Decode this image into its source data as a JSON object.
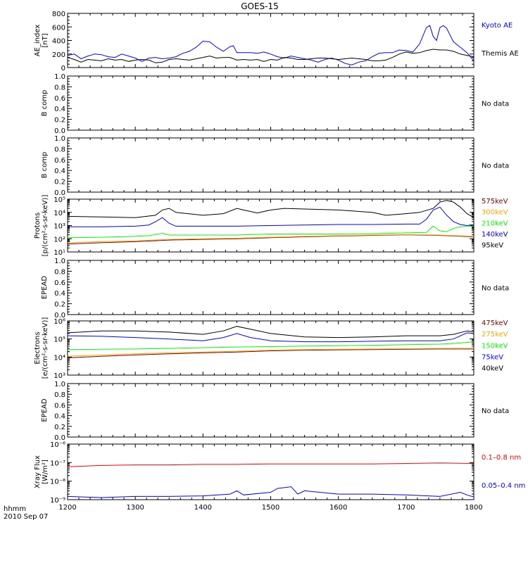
{
  "title": "GOES-15",
  "time_axis": {
    "label": "hhmm",
    "date": "2010 Sep 07",
    "ticks": [
      "1200",
      "1300",
      "1400",
      "1500",
      "1600",
      "1700",
      "1800"
    ]
  },
  "colors": {
    "black": "#000000",
    "blue": "#0000ff",
    "red": "#ff0000",
    "orange": "#ffa500",
    "green": "#00ff00",
    "dark_red": "#800000"
  },
  "chart_data": [
    {
      "type": "line",
      "ylabel": [
        "AE_index",
        "[nT]"
      ],
      "ylim": [
        0,
        800
      ],
      "yticks": [
        "0",
        "200",
        "400",
        "600",
        "800"
      ],
      "series": [
        {
          "name": "Kyoto AE",
          "color": "#0000ff",
          "x": [
            1200,
            1210,
            1220,
            1230,
            1240,
            1250,
            1260,
            1270,
            1280,
            1290,
            1300,
            1310,
            1320,
            1330,
            1340,
            1350,
            1360,
            1370,
            1380,
            1390,
            1400,
            1410,
            1420,
            1430,
            1440,
            1445,
            1450,
            1460,
            1470,
            1480,
            1490,
            1500,
            1510,
            1520,
            1530,
            1540,
            1550,
            1560,
            1570,
            1580,
            1590,
            1600,
            1610,
            1620,
            1630,
            1640,
            1650,
            1660,
            1670,
            1680,
            1690,
            1700,
            1710,
            1720,
            1730,
            1735,
            1740,
            1745,
            1750,
            1755,
            1760,
            1765,
            1770,
            1780,
            1790,
            1800
          ],
          "y": [
            180,
            200,
            130,
            170,
            200,
            190,
            160,
            150,
            200,
            170,
            140,
            90,
            140,
            150,
            130,
            140,
            160,
            210,
            240,
            300,
            390,
            380,
            300,
            240,
            310,
            320,
            220,
            220,
            220,
            210,
            230,
            200,
            160,
            140,
            170,
            150,
            130,
            110,
            80,
            120,
            140,
            110,
            60,
            40,
            80,
            100,
            160,
            210,
            220,
            220,
            260,
            250,
            230,
            350,
            590,
            620,
            460,
            400,
            590,
            620,
            580,
            480,
            380,
            300,
            220,
            100
          ]
        },
        {
          "name": "Themis AE",
          "color": "#000000",
          "x": [
            1200,
            1210,
            1220,
            1230,
            1240,
            1250,
            1260,
            1270,
            1280,
            1290,
            1300,
            1310,
            1320,
            1330,
            1340,
            1350,
            1360,
            1370,
            1380,
            1390,
            1400,
            1410,
            1420,
            1430,
            1440,
            1450,
            1460,
            1470,
            1480,
            1490,
            1500,
            1510,
            1520,
            1530,
            1540,
            1550,
            1560,
            1570,
            1580,
            1590,
            1600,
            1610,
            1620,
            1630,
            1640,
            1650,
            1660,
            1670,
            1680,
            1690,
            1700,
            1710,
            1720,
            1730,
            1740,
            1750,
            1760,
            1770,
            1780,
            1790,
            1800
          ],
          "y": [
            150,
            120,
            80,
            120,
            110,
            100,
            130,
            110,
            120,
            90,
            110,
            120,
            110,
            70,
            80,
            120,
            130,
            120,
            110,
            130,
            150,
            170,
            140,
            150,
            150,
            110,
            120,
            110,
            120,
            90,
            120,
            110,
            150,
            140,
            120,
            120,
            130,
            140,
            140,
            130,
            120,
            130,
            140,
            130,
            120,
            100,
            100,
            110,
            150,
            200,
            230,
            210,
            220,
            250,
            270,
            260,
            260,
            240,
            200,
            180,
            160
          ]
        }
      ]
    },
    {
      "type": "line",
      "ylabel": [
        "B comp"
      ],
      "ylim": [
        0,
        1
      ],
      "yticks": [
        "0.0",
        "0.2",
        "0.4",
        "0.6",
        "0.8",
        "1.0"
      ],
      "note": "No data",
      "series": []
    },
    {
      "type": "line",
      "ylabel": [
        "B comp"
      ],
      "ylim": [
        0,
        1
      ],
      "yticks": [
        "0.0",
        "0.2",
        "0.4",
        "0.6",
        "0.8",
        "1.0"
      ],
      "note": "No data",
      "series": []
    },
    {
      "type": "line",
      "log": true,
      "ylabel": [
        "Protons",
        "[p/(cm²-s-sr-keV)]"
      ],
      "ylim": [
        1,
        5
      ],
      "ytick_exponents": [
        1,
        2,
        3,
        4,
        5
      ],
      "series": [
        {
          "name": "575keV",
          "color": "#800000",
          "x": [
            1200,
            1250,
            1300,
            1350,
            1400,
            1450,
            1500,
            1550,
            1600,
            1650,
            1700,
            1750,
            1800
          ],
          "y": [
            40,
            50,
            60,
            80,
            90,
            100,
            120,
            140,
            160,
            180,
            200,
            180,
            140
          ]
        },
        {
          "name": "300keV",
          "color": "#ffa500",
          "x": [
            1200,
            1250,
            1300,
            1350,
            1400,
            1450,
            1500,
            1550,
            1600,
            1650,
            1700,
            1750,
            1800
          ],
          "y": [
            50,
            60,
            70,
            90,
            100,
            110,
            130,
            150,
            170,
            190,
            210,
            190,
            150
          ]
        },
        {
          "name": "210keV",
          "color": "#00ff00",
          "x": [
            1200,
            1250,
            1300,
            1320,
            1340,
            1350,
            1400,
            1450,
            1500,
            1550,
            1600,
            1650,
            1700,
            1730,
            1740,
            1750,
            1760,
            1770,
            1780,
            1790,
            1800
          ],
          "y": [
            120,
            130,
            150,
            170,
            260,
            190,
            190,
            190,
            230,
            230,
            230,
            240,
            280,
            300,
            900,
            400,
            350,
            600,
            800,
            900,
            900
          ]
        },
        {
          "name": "140keV",
          "color": "#0000ff",
          "x": [
            1200,
            1250,
            1300,
            1320,
            1330,
            1340,
            1350,
            1360,
            1400,
            1450,
            1500,
            1550,
            1600,
            1650,
            1700,
            1720,
            1730,
            1740,
            1750,
            1760,
            1770,
            1780,
            1790,
            1800
          ],
          "y": [
            800,
            800,
            900,
            1100,
            2000,
            4000,
            1500,
            900,
            900,
            900,
            1000,
            1100,
            1200,
            1200,
            1300,
            1300,
            3000,
            15000,
            25000,
            6000,
            2000,
            1200,
            1000,
            1200
          ]
        },
        {
          "name": "95keV",
          "color": "#000000",
          "x": [
            1200,
            1250,
            1300,
            1330,
            1340,
            1350,
            1360,
            1400,
            1430,
            1450,
            1460,
            1480,
            1500,
            1520,
            1550,
            1600,
            1650,
            1670,
            1700,
            1720,
            1740,
            1750,
            1760,
            1770,
            1780,
            1790,
            1800
          ],
          "y": [
            5000,
            4500,
            4000,
            6000,
            15000,
            20000,
            10000,
            6000,
            8000,
            20000,
            15000,
            9000,
            15000,
            20000,
            18000,
            15000,
            10000,
            6000,
            8000,
            10000,
            20000,
            60000,
            80000,
            60000,
            25000,
            8000,
            4000
          ]
        }
      ]
    },
    {
      "type": "line",
      "ylabel": [
        "EPEAD"
      ],
      "ylim": [
        0,
        1
      ],
      "yticks": [
        "0.0",
        "0.2",
        "0.4",
        "0.6",
        "0.8",
        "1.0"
      ],
      "note": "No data",
      "series": []
    },
    {
      "type": "line",
      "log": true,
      "ylabel": [
        "Electrons",
        "[e/(cm²-s-sr-keV)]"
      ],
      "ylim": [
        3,
        6
      ],
      "ytick_exponents": [
        3,
        4,
        5,
        6
      ],
      "series": [
        {
          "name": "475keV",
          "color": "#800000",
          "x": [
            1200,
            1250,
            1300,
            1350,
            1400,
            1450,
            1500,
            1550,
            1600,
            1650,
            1700,
            1750,
            1800
          ],
          "y": [
            9000,
            11000,
            13000,
            15000,
            17000,
            19000,
            22000,
            24000,
            25000,
            26000,
            27000,
            28000,
            28000
          ]
        },
        {
          "name": "275keV",
          "color": "#ffa500",
          "x": [
            1200,
            1250,
            1300,
            1350,
            1400,
            1450,
            1500,
            1550,
            1600,
            1650,
            1700,
            1750,
            1800
          ],
          "y": [
            11000,
            13000,
            15000,
            17000,
            19000,
            21000,
            24000,
            26000,
            27000,
            28000,
            29000,
            30000,
            30000
          ]
        },
        {
          "name": "150keV",
          "color": "#00ff00",
          "x": [
            1200,
            1250,
            1300,
            1350,
            1400,
            1450,
            1500,
            1550,
            1600,
            1650,
            1700,
            1750,
            1780,
            1800
          ],
          "y": [
            26000,
            27000,
            28000,
            30000,
            33000,
            36000,
            38000,
            40000,
            42000,
            45000,
            48000,
            52000,
            60000,
            70000
          ]
        },
        {
          "name": "75keV",
          "color": "#0000ff",
          "x": [
            1200,
            1250,
            1300,
            1350,
            1400,
            1430,
            1450,
            1470,
            1500,
            1550,
            1600,
            1650,
            1700,
            1750,
            1770,
            1790,
            1800
          ],
          "y": [
            150000,
            140000,
            120000,
            100000,
            80000,
            120000,
            200000,
            120000,
            80000,
            70000,
            70000,
            75000,
            80000,
            80000,
            100000,
            220000,
            200000
          ]
        },
        {
          "name": "40keV",
          "color": "#000000",
          "x": [
            1200,
            1250,
            1300,
            1350,
            1400,
            1430,
            1450,
            1470,
            1500,
            1550,
            1600,
            1650,
            1700,
            1750,
            1770,
            1790,
            1800
          ],
          "y": [
            220000,
            280000,
            280000,
            240000,
            180000,
            280000,
            500000,
            350000,
            200000,
            130000,
            120000,
            130000,
            150000,
            150000,
            180000,
            280000,
            250000
          ]
        }
      ]
    },
    {
      "type": "line",
      "ylabel": [
        "EPEAD"
      ],
      "ylim": [
        0,
        1
      ],
      "yticks": [
        "0.0",
        "0.2",
        "0.4",
        "0.6",
        "0.8",
        "1.0"
      ],
      "note": "No data",
      "series": []
    },
    {
      "type": "line",
      "log": true,
      "ylabel": [
        "Xray Flux",
        "[W/m²]"
      ],
      "ylim": [
        -9,
        -6
      ],
      "ytick_exponents": [
        -9,
        -8,
        -7,
        -6
      ],
      "ytick_labels": [
        "10⁻⁹",
        "10⁻⁸",
        "10⁻⁷",
        "10⁻⁶"
      ],
      "series": [
        {
          "name": "0.1–0.8 nm",
          "color": "#ff0000",
          "x": [
            1200,
            1250,
            1300,
            1350,
            1400,
            1450,
            1500,
            1550,
            1600,
            1650,
            1700,
            1750,
            1800
          ],
          "y": [
            6e-08,
            7e-08,
            7.5e-08,
            7.5e-08,
            8e-08,
            8e-08,
            8.5e-08,
            8.5e-08,
            8.5e-08,
            8.5e-08,
            9e-08,
            9.5e-08,
            9e-08
          ]
        },
        {
          "name": "0.05–0.4 nm",
          "color": "#0000ff",
          "x": [
            1200,
            1250,
            1300,
            1350,
            1400,
            1440,
            1450,
            1460,
            1500,
            1510,
            1530,
            1540,
            1550,
            1600,
            1650,
            1700,
            1750,
            1780,
            1790,
            1800
          ],
          "y": [
            1.5e-09,
            1.3e-09,
            1.5e-09,
            1.5e-09,
            1.6e-09,
            2e-09,
            3e-09,
            1.8e-09,
            2.5e-09,
            4e-09,
            5e-09,
            2e-09,
            3e-09,
            2e-09,
            2e-09,
            1.8e-09,
            1.5e-09,
            2.5e-09,
            1.8e-09,
            1.4e-09
          ]
        }
      ]
    }
  ]
}
